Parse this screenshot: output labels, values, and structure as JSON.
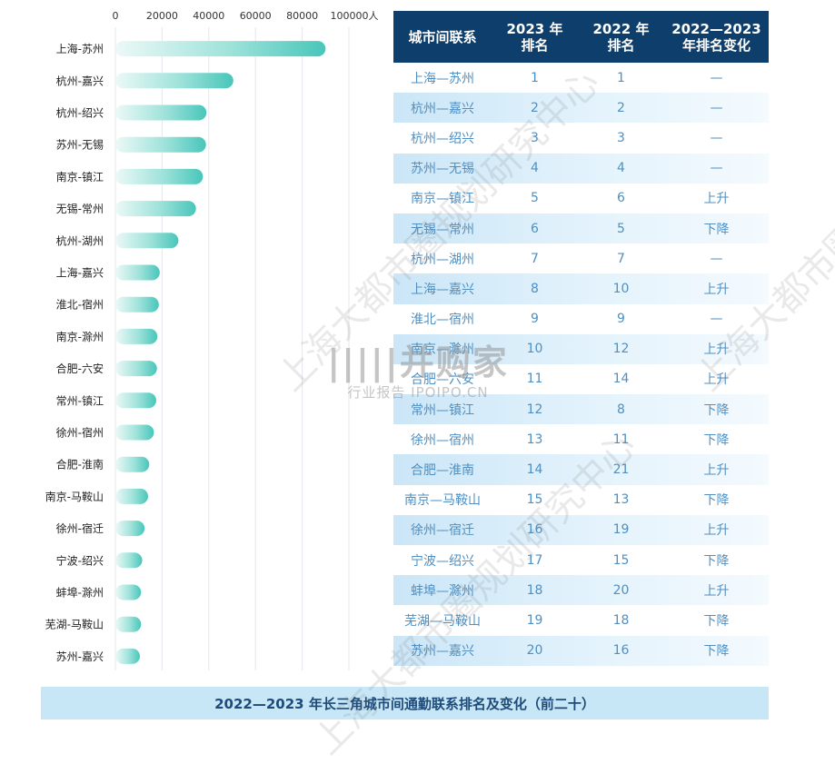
{
  "chart_data": {
    "type": "bar",
    "orientation": "horizontal",
    "x_ticks": [
      "0",
      "20000",
      "40000",
      "60000",
      "80000",
      "100000人"
    ],
    "xlim": [
      0,
      100000
    ],
    "grid": true,
    "categories": [
      "上海-苏州",
      "杭州-嘉兴",
      "杭州-绍兴",
      "苏州-无锡",
      "南京-镇江",
      "无锡-常州",
      "杭州-湖州",
      "上海-嘉兴",
      "淮北-宿州",
      "南京-滁州",
      "合肥-六安",
      "常州-镇江",
      "徐州-宿州",
      "合肥-淮南",
      "南京-马鞍山",
      "徐州-宿迁",
      "宁波-绍兴",
      "蚌埠-滁州",
      "芜湖-马鞍山",
      "苏州-嘉兴"
    ],
    "values": [
      90000,
      50500,
      39000,
      38800,
      37500,
      34500,
      27000,
      19000,
      18600,
      18000,
      17800,
      17500,
      16500,
      14500,
      14000,
      12500,
      11500,
      11000,
      11000,
      10500
    ],
    "bar_color": "#4ecbc0"
  },
  "table": {
    "headers": [
      "城市间联系",
      "2023 年\n排名",
      "2022 年\n排名",
      "2022—2023\n年排名变化"
    ],
    "rows": [
      [
        "上海—苏州",
        "1",
        "1",
        "—"
      ],
      [
        "杭州—嘉兴",
        "2",
        "2",
        "—"
      ],
      [
        "杭州—绍兴",
        "3",
        "3",
        "—"
      ],
      [
        "苏州—无锡",
        "4",
        "4",
        "—"
      ],
      [
        "南京—镇江",
        "5",
        "6",
        "上升"
      ],
      [
        "无锡—常州",
        "6",
        "5",
        "下降"
      ],
      [
        "杭州—湖州",
        "7",
        "7",
        "—"
      ],
      [
        "上海—嘉兴",
        "8",
        "10",
        "上升"
      ],
      [
        "淮北—宿州",
        "9",
        "9",
        "—"
      ],
      [
        "南京—滁州",
        "10",
        "12",
        "上升"
      ],
      [
        "合肥—六安",
        "11",
        "14",
        "上升"
      ],
      [
        "常州—镇江",
        "12",
        "8",
        "下降"
      ],
      [
        "徐州—宿州",
        "13",
        "11",
        "下降"
      ],
      [
        "合肥—淮南",
        "14",
        "21",
        "上升"
      ],
      [
        "南京—马鞍山",
        "15",
        "13",
        "下降"
      ],
      [
        "徐州—宿迁",
        "16",
        "19",
        "上升"
      ],
      [
        "宁波—绍兴",
        "17",
        "15",
        "下降"
      ],
      [
        "蚌埠—滁州",
        "18",
        "20",
        "上升"
      ],
      [
        "芜湖—马鞍山",
        "19",
        "18",
        "下降"
      ],
      [
        "苏州—嘉兴",
        "20",
        "16",
        "下降"
      ]
    ]
  },
  "caption": "2022—2023 年长三角城市间通勤联系排名及变化（前二十）",
  "watermarks": {
    "text_1": "上海大都市圈规划研究中心",
    "logo_main": "|||||并购家",
    "logo_sub": "行业报告 IPOIPO.CN"
  },
  "colors": {
    "header_bg": "#0e3e6b",
    "row_tint": "#d6ecf9",
    "table_text": "#4f8fc2",
    "caption_bg": "#c7e6f6",
    "bar": "#4ecbc0"
  }
}
